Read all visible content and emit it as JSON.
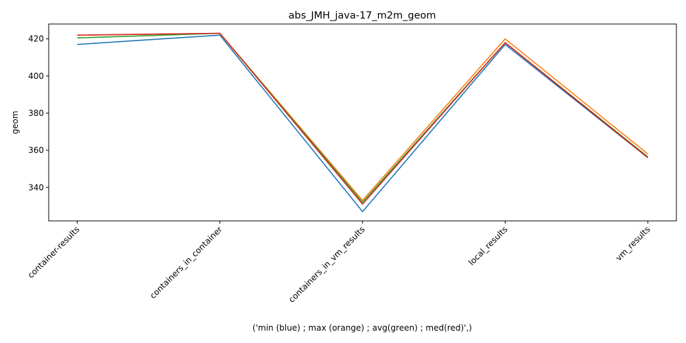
{
  "chart_data": {
    "type": "line",
    "title": "abs_JMH_java-17_m2m_geom",
    "xlabel": "('min (blue) ; max (orange) ; avg(green) ; med(red)',)",
    "ylabel": "geom",
    "categories": [
      "container-results",
      "containers_in_container",
      "containers_in_vm_results",
      "local_results",
      "vm_results"
    ],
    "ylim": [
      322,
      428
    ],
    "yticks": [
      340,
      360,
      380,
      400,
      420
    ],
    "grid": false,
    "series": [
      {
        "color": "#1f77b4",
        "values": [
          417,
          422,
          327,
          417,
          356
        ]
      },
      {
        "color": "#ff7f0e",
        "values": [
          422,
          423,
          333,
          420,
          358
        ]
      },
      {
        "color": "#2ca02c",
        "values": [
          420.5,
          423,
          332,
          418,
          356.5
        ]
      },
      {
        "color": "#d62728",
        "values": [
          422,
          423,
          331,
          418,
          356
        ]
      }
    ]
  }
}
